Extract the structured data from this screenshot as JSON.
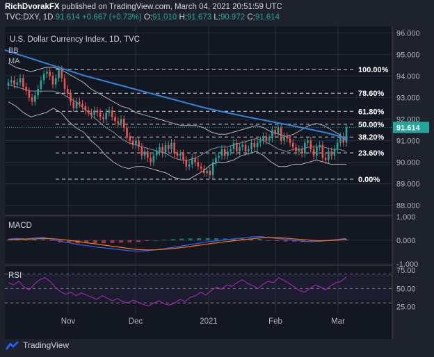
{
  "header": {
    "author": "RichDvorakFX",
    "published_text": "published on TradingView.com, March 04, 2021 20:51:59 UTC",
    "symbol": "TVC:DXY, 1D",
    "last": "91.614",
    "change": "+0.667 (+0.73%)",
    "o_label": "O:",
    "o": "91.010",
    "h_label": "H:",
    "h": "91.673",
    "l_label": "L:",
    "l": "90.972",
    "c_label": "C:",
    "c": "91.614"
  },
  "footer": {
    "brand": "TradingView"
  },
  "colors": {
    "background": "#131722",
    "grid": "#2a2e39",
    "up": "#26a69a",
    "down": "#ef5350",
    "trendline": "#2e86de",
    "bb": "#b2b5be",
    "macd": "#2962ff",
    "signal": "#ff6d00",
    "rsi": "#9c27b0",
    "price_tag": "#26a69a"
  },
  "chart_data": [
    {
      "type": "candlestick",
      "title": "U.S. Dollar Currency Index, 1D, TVC",
      "indicators": [
        "BB",
        "MA"
      ],
      "x_tick_labels": [
        "Nov",
        "Dec",
        "2021",
        "Feb",
        "Mar"
      ],
      "ylim": [
        87.6,
        96.3
      ],
      "y_tick_labels": [
        "96.000",
        "95.000",
        "94.000",
        "93.000",
        "92.000",
        "91.000",
        "90.000",
        "89.000",
        "88.000"
      ],
      "y_ticks": [
        96,
        95,
        94,
        93,
        92,
        91,
        90,
        89,
        88
      ],
      "last_price_label": "91.614",
      "last_price": 91.614,
      "fibonacci": [
        {
          "label": "100.00%",
          "value": 94.3
        },
        {
          "label": "78.60%",
          "value": 93.2
        },
        {
          "label": "61.80%",
          "value": 92.36
        },
        {
          "label": "50.00%",
          "value": 91.76
        },
        {
          "label": "38.20%",
          "value": 91.17
        },
        {
          "label": "23.60%",
          "value": 90.43
        },
        {
          "label": "0.00%",
          "value": 89.21
        }
      ],
      "closes": [
        93.7,
        93.8,
        93.6,
        93.7,
        93.9,
        93.5,
        93.3,
        93.0,
        92.8,
        93.1,
        93.4,
        93.8,
        94.1,
        94.2,
        94.0,
        93.6,
        93.9,
        94.3,
        93.9,
        93.4,
        93.2,
        92.8,
        92.5,
        92.8,
        92.7,
        92.6,
        92.4,
        92.3,
        92.2,
        92.4,
        92.3,
        92.1,
        92.0,
        92.3,
        92.4,
        92.1,
        91.9,
        91.8,
        92.0,
        91.6,
        91.2,
        91.0,
        90.8,
        91.0,
        90.7,
        90.3,
        90.5,
        90.2,
        90.0,
        90.3,
        90.5,
        90.7,
        90.4,
        90.8,
        90.6,
        90.9,
        90.4,
        90.3,
        90.4,
        90.1,
        89.8,
        89.9,
        90.2,
        90.0,
        89.8,
        89.7,
        89.5,
        89.6,
        89.4,
        90.0,
        90.2,
        90.3,
        90.6,
        90.3,
        90.5,
        90.6,
        90.9,
        90.5,
        90.7,
        90.8,
        90.5,
        90.6,
        90.9,
        90.7,
        90.9,
        91.0,
        91.2,
        91.0,
        91.1,
        91.5,
        91.3,
        91.6,
        91.0,
        91.2,
        91.1,
        90.9,
        90.7,
        90.5,
        90.6,
        90.4,
        90.9,
        91.0,
        90.6,
        90.3,
        90.7,
        90.8,
        90.2,
        90.1,
        90.5,
        90.3,
        90.6,
        90.9,
        91.2,
        90.9,
        91.614
      ],
      "bb_upper": [
        94.6,
        94.4,
        94.3,
        94.2,
        94.3,
        94.4,
        94.4,
        94.3,
        94.1,
        93.9,
        93.7,
        93.4,
        93.2,
        93.0,
        92.8,
        92.6,
        92.5,
        92.3,
        92.2,
        92.1,
        92.0,
        91.9,
        91.8,
        91.7,
        91.7,
        91.7,
        91.6,
        91.4,
        91.3,
        91.3,
        91.4,
        91.5,
        91.6,
        91.7,
        91.6,
        91.4,
        91.3,
        91.2,
        91.3,
        91.5,
        91.7,
        91.8,
        91.7,
        91.5,
        91.3,
        91.0
      ],
      "bb_lower": [
        92.8,
        92.6,
        92.3,
        92.1,
        92.2,
        92.3,
        92.5,
        92.3,
        91.9,
        91.6,
        91.4,
        91.0,
        90.7,
        90.3,
        90.0,
        89.8,
        89.7,
        89.8,
        89.8,
        89.7,
        89.6,
        89.5,
        89.3,
        89.2,
        89.2,
        89.4,
        89.6,
        89.9,
        90.0,
        90.0,
        90.1,
        90.3,
        90.4,
        90.5,
        90.3,
        90.0,
        89.8,
        89.8,
        89.9,
        89.9,
        90.0,
        90.1,
        90.0,
        89.9,
        89.9,
        89.9
      ],
      "bb_basis": [
        93.6,
        93.5,
        93.4,
        93.3,
        93.3,
        93.3,
        93.3,
        93.2,
        93.0,
        92.8,
        92.5,
        92.2,
        91.9,
        91.6,
        91.4,
        91.1,
        90.9,
        90.8,
        90.7,
        90.6,
        90.5,
        90.4,
        90.2,
        90.1,
        90.1,
        90.2,
        90.4,
        90.6,
        90.7,
        90.7,
        90.8,
        90.9,
        91.0,
        91.1,
        91.0,
        90.8,
        90.6,
        90.5,
        90.6,
        90.6,
        90.7,
        90.7,
        90.7,
        90.6,
        90.6,
        90.5
      ],
      "ma": [
        95.2,
        94.9,
        94.6,
        94.3,
        94.0,
        93.75,
        93.5,
        93.25,
        93.0,
        92.75,
        92.5,
        92.3,
        92.1,
        91.92,
        91.74,
        91.55,
        91.35,
        91.1
      ]
    },
    {
      "type": "line",
      "title": "MACD",
      "ylim": [
        -1.0,
        1.0
      ],
      "y_tick_labels": [
        "1.000",
        "0.000",
        "-1.000"
      ],
      "y_ticks": [
        1,
        0,
        -1
      ],
      "series": [
        {
          "name": "MACD",
          "values": [
            0.05,
            0.08,
            0.06,
            0.1,
            0.12,
            0.05,
            -0.05,
            -0.1,
            -0.18,
            -0.22,
            -0.28,
            -0.32,
            -0.36,
            -0.4,
            -0.44,
            -0.46,
            -0.44,
            -0.4,
            -0.36,
            -0.3,
            -0.24,
            -0.18,
            -0.12,
            -0.06,
            -0.02,
            0.02,
            0.06,
            0.1,
            0.14,
            0.16,
            0.12,
            0.08,
            0.04,
            0.0,
            -0.04,
            -0.06,
            -0.04,
            0.0,
            0.04,
            0.08
          ]
        },
        {
          "name": "Signal",
          "values": [
            0.02,
            0.04,
            0.05,
            0.06,
            0.08,
            0.07,
            0.04,
            0.0,
            -0.05,
            -0.1,
            -0.15,
            -0.2,
            -0.25,
            -0.3,
            -0.35,
            -0.39,
            -0.41,
            -0.4,
            -0.38,
            -0.35,
            -0.31,
            -0.26,
            -0.21,
            -0.16,
            -0.11,
            -0.06,
            -0.02,
            0.02,
            0.06,
            0.1,
            0.12,
            0.11,
            0.09,
            0.06,
            0.03,
            0.0,
            -0.02,
            -0.01,
            0.01,
            0.04
          ]
        }
      ]
    },
    {
      "type": "line",
      "title": "RSI",
      "ylim": [
        15,
        80
      ],
      "y_tick_labels": [
        "75.00",
        "50.00",
        "25.00"
      ],
      "y_ticks": [
        75,
        50,
        25
      ],
      "bands": [
        70,
        50,
        30
      ],
      "series": [
        {
          "name": "RSI",
          "values": [
            58,
            55,
            60,
            52,
            48,
            56,
            62,
            65,
            60,
            52,
            46,
            42,
            45,
            40,
            44,
            41,
            38,
            35,
            40,
            37,
            33,
            36,
            32,
            30,
            34,
            31,
            28,
            26,
            30,
            33,
            29,
            27,
            30,
            35,
            32,
            38,
            40,
            45,
            41,
            47,
            52,
            49,
            55,
            53,
            58,
            62,
            57,
            54,
            50,
            56,
            60,
            58,
            65,
            61,
            57,
            52,
            47,
            45,
            50,
            55,
            52,
            48,
            54,
            58,
            60,
            66
          ]
        }
      ]
    }
  ]
}
